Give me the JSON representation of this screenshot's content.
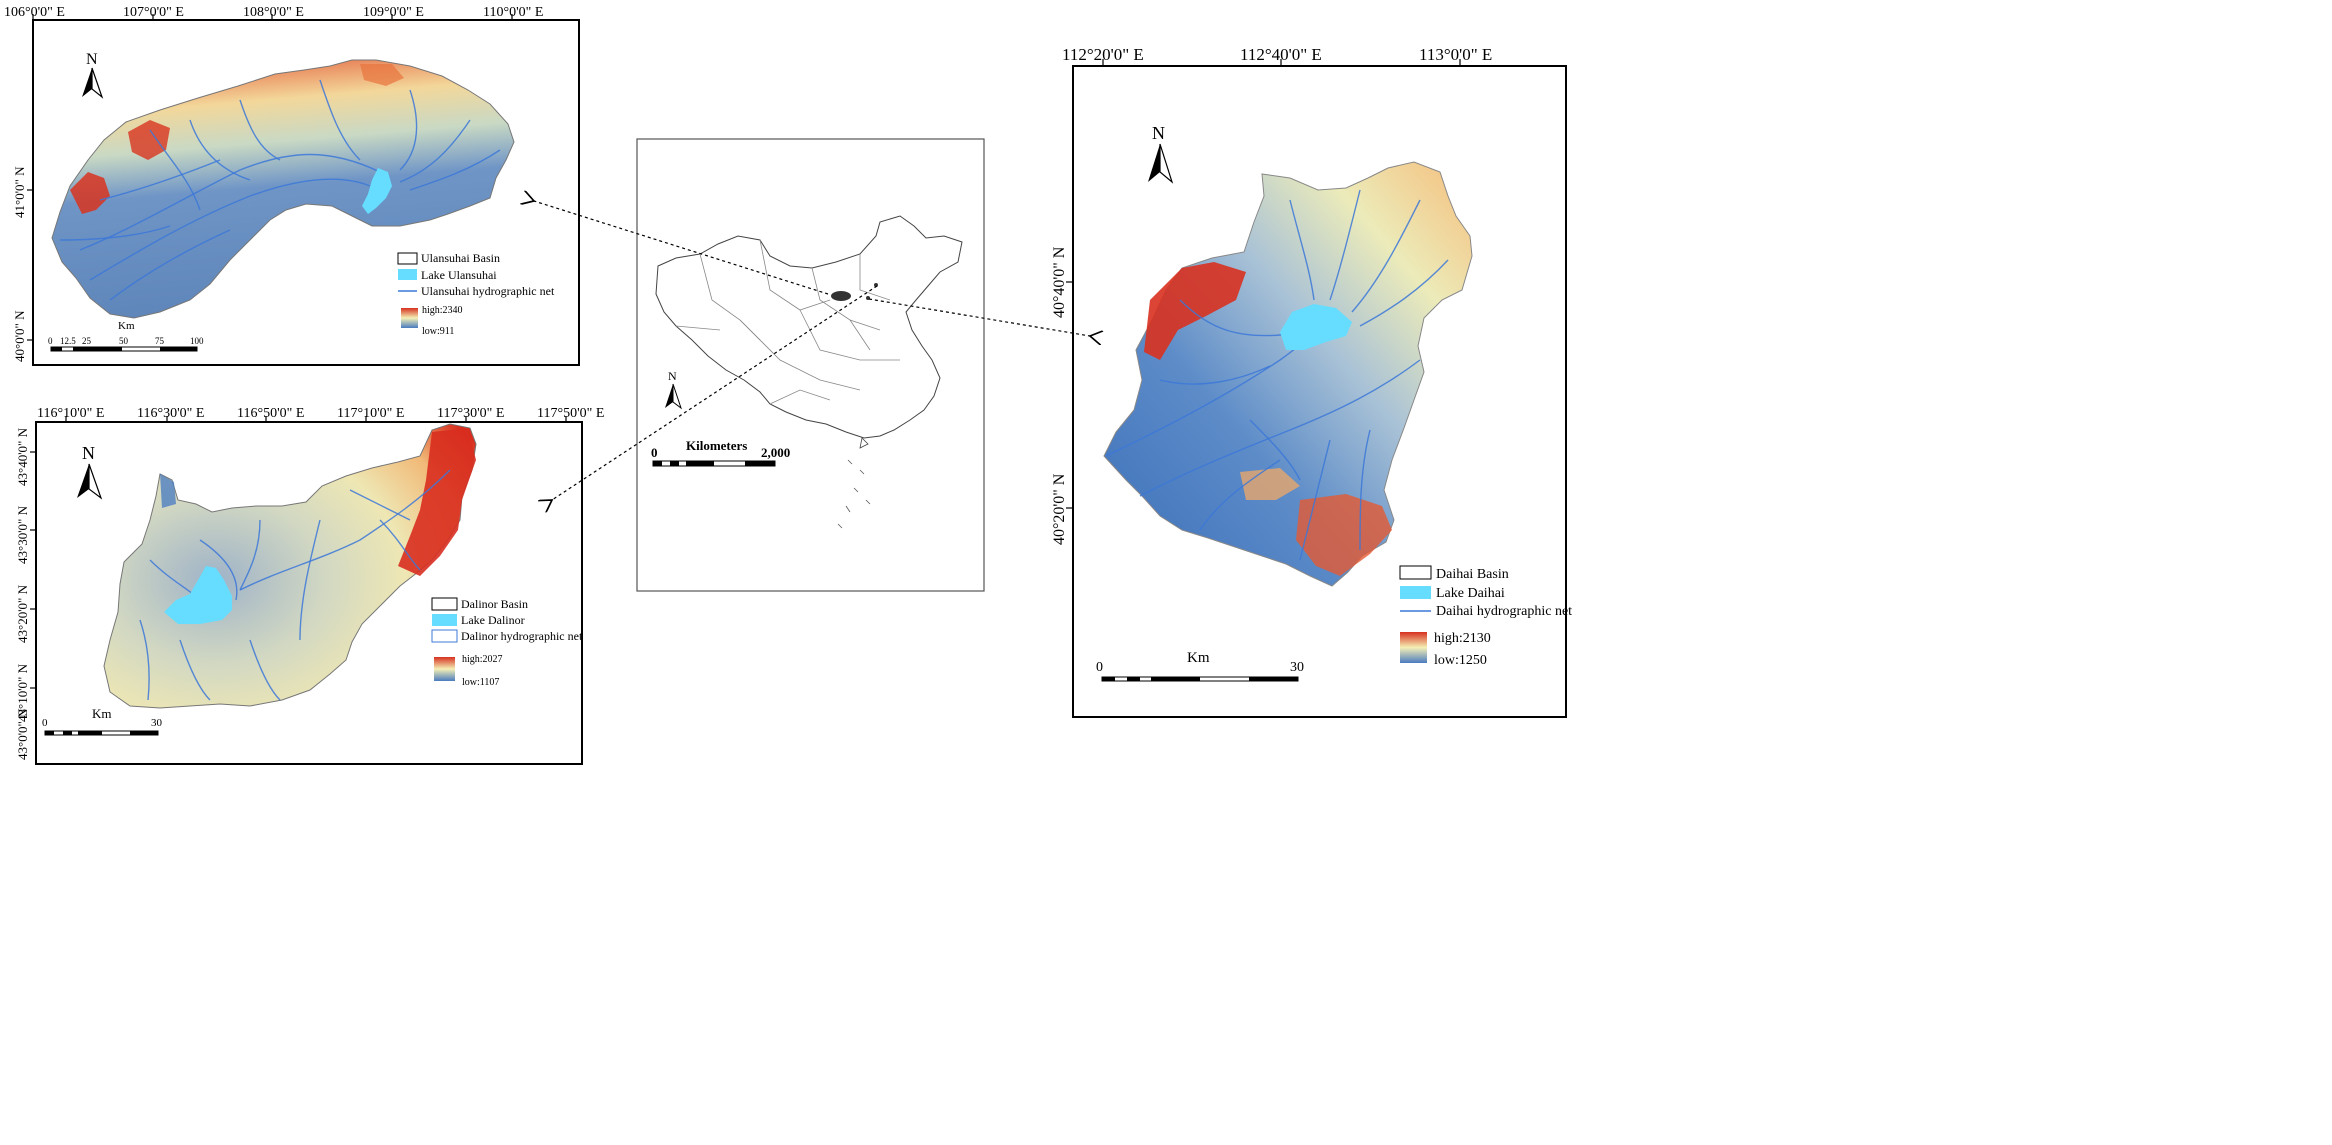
{
  "map_ulansuhai": {
    "lon_labels": [
      "106°0'0\" E",
      "107°0'0\" E",
      "108°0'0\" E",
      "109°0'0\" E",
      "110°0'0\" E"
    ],
    "lat_labels": [
      "41°0'0\" N",
      "40°0'0\" N"
    ],
    "north": "N",
    "legend": {
      "basin": "Ulansuhai Basin",
      "lake": "Lake Ulansuhai",
      "net": "Ulansuhai hydrographic net",
      "high": "high:2340",
      "low": "low:911"
    },
    "scale": {
      "unit": "Km",
      "ticks": [
        "0",
        "12.5",
        "25",
        "50",
        "75",
        "100"
      ]
    }
  },
  "map_dalinor": {
    "lon_labels": [
      "116°10'0\" E",
      "116°30'0\" E",
      "116°50'0\" E",
      "117°10'0\" E",
      "117°30'0\" E",
      "117°50'0\" E"
    ],
    "lat_labels": [
      "43°40'0\" N",
      "43°30'0\" N",
      "43°20'0\" N",
      "43°10'0\" N",
      "43°0'0\" N"
    ],
    "north": "N",
    "legend": {
      "basin": "Dalinor Basin",
      "lake": "Lake Dalinor",
      "net": "Dalinor hydrographic net",
      "high": "high:2027",
      "low": "low:1107"
    },
    "scale": {
      "unit": "Km",
      "ticks": [
        "0",
        "30"
      ]
    }
  },
  "map_china": {
    "north": "N",
    "scale": {
      "unit": "Kilometers",
      "ticks": [
        "0",
        "2,000"
      ]
    }
  },
  "map_daihai": {
    "lon_labels": [
      "112°20'0\" E",
      "112°40'0\" E",
      "113°0'0\" E"
    ],
    "lat_labels": [
      "40°40'0\" N",
      "40°20'0\" N"
    ],
    "north": "N",
    "legend": {
      "basin": "Daihai Basin",
      "lake": "Lake Daihai",
      "net": "Daihai hydrographic net",
      "high": "high:2130",
      "low": "low:1250"
    },
    "scale": {
      "unit": "Km",
      "ticks": [
        "0",
        "30"
      ]
    }
  },
  "colors": {
    "high": "#d7301f",
    "mid": "#f5f0b5",
    "low": "#4a7bbf",
    "lake": "#66ddff",
    "river": "#3c78d8"
  }
}
